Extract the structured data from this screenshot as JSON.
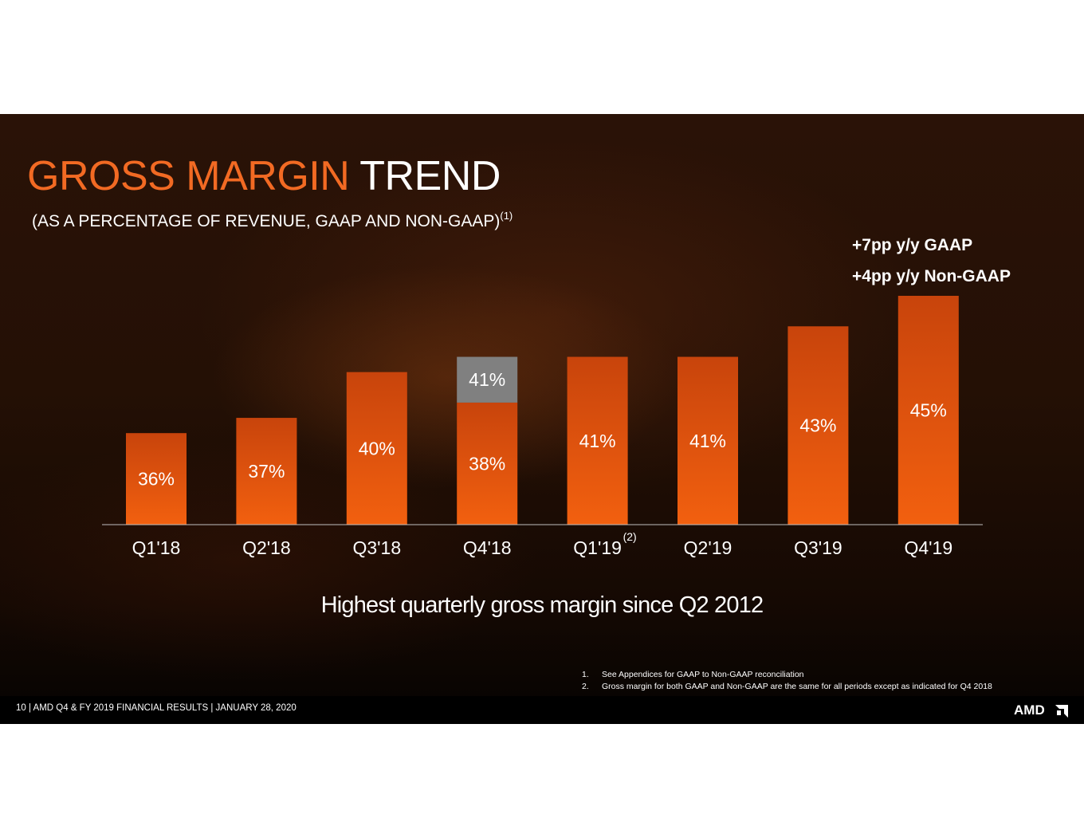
{
  "title": {
    "accent": "GROSS MARGIN",
    "rest": "TREND"
  },
  "subtitle": {
    "text": "(AS A PERCENTAGE OF REVENUE, GAAP AND NON-GAAP)",
    "footnote_ref": "(1)"
  },
  "growth": {
    "gaap": "+7pp y/y GAAP",
    "non_gaap": "+4pp y/y Non-GAAP"
  },
  "callout": "Highest quarterly gross margin since Q2 2012",
  "chart_data": {
    "type": "bar",
    "categories": [
      "Q1'18",
      "Q2'18",
      "Q3'18",
      "Q4'18",
      "Q1'19",
      "Q2'19",
      "Q3'19",
      "Q4'19"
    ],
    "category_footnotes": [
      "",
      "",
      "",
      "",
      "(2)",
      "",
      "",
      ""
    ],
    "series": [
      {
        "values": [
          36,
          37,
          40,
          38,
          41,
          41,
          43,
          45
        ],
        "labels": [
          "36%",
          "37%",
          "40%",
          "38%",
          "41%",
          "41%",
          "43%",
          "45%"
        ],
        "color": "#e85511"
      },
      {
        "values": [
          null,
          null,
          null,
          41,
          null,
          null,
          null,
          null
        ],
        "labels": [
          "",
          "",
          "",
          "41%",
          "",
          "",
          "",
          ""
        ],
        "color": "#808080"
      }
    ],
    "ylim": [
      30,
      45
    ]
  },
  "footnotes": [
    {
      "num": "1.",
      "text": "See Appendices for GAAP to Non-GAAP reconciliation"
    },
    {
      "num": "2.",
      "text": "Gross margin for both GAAP and Non-GAAP are the same for all periods except as indicated for Q4 2018"
    }
  ],
  "footer": {
    "text": "10  |  AMD Q4 & FY 2019 FINANCIAL RESULTS  |  JANUARY 28, 2020",
    "logo": "AMD"
  }
}
